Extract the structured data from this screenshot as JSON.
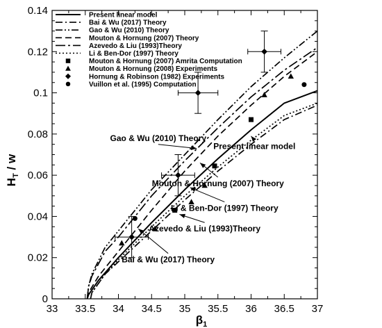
{
  "chart_data": {
    "type": "line",
    "xlabel": "β",
    "xlabel_sub": "1",
    "ylabel": "H",
    "ylabel_sub": "T",
    "ylabel_suffix": " / w",
    "xlim": [
      33,
      37
    ],
    "ylim": [
      0,
      0.14
    ],
    "xticks": [
      33,
      33.5,
      34,
      34.5,
      35,
      35.5,
      36,
      36.5,
      37
    ],
    "xtick_labels": [
      "33",
      "33.5",
      "34",
      "34.5",
      "35",
      "35.5",
      "36",
      "36.5",
      "37"
    ],
    "yticks": [
      0,
      0.02,
      0.04,
      0.06,
      0.08,
      0.1,
      0.12,
      0.14
    ],
    "ytick_labels": [
      "0",
      "0.02",
      "0.04",
      "0.06",
      "0.08",
      "0.1",
      "0.12",
      "0.14"
    ],
    "legend_position": "top-left",
    "series": [
      {
        "name": "Present linear model",
        "kind": "line",
        "dash": "solid",
        "x": [
          33.53,
          33.55,
          33.7,
          34.0,
          34.5,
          35.0,
          35.5,
          36.0,
          36.5,
          37.0
        ],
        "y": [
          0.0,
          0.002,
          0.009,
          0.02,
          0.037,
          0.053,
          0.068,
          0.082,
          0.095,
          0.101
        ]
      },
      {
        "name": "Bai & Wu (2017) Theory",
        "kind": "line",
        "dash": "dashdot",
        "x": [
          33.58,
          33.6,
          33.8,
          34.0,
          34.5,
          35.0,
          35.5,
          36.0,
          36.5,
          37.0
        ],
        "y": [
          0.0,
          0.003,
          0.012,
          0.018,
          0.033,
          0.048,
          0.062,
          0.075,
          0.087,
          0.094
        ]
      },
      {
        "name": "Gao & Wu (2010) Theory",
        "kind": "line",
        "dash": "dashdotdot",
        "x": [
          33.53,
          33.55,
          33.6,
          33.8,
          34.0,
          34.5,
          35.0,
          35.5,
          36.0,
          36.5,
          37.0
        ],
        "y": [
          0.0,
          0.006,
          0.012,
          0.025,
          0.033,
          0.053,
          0.07,
          0.087,
          0.103,
          0.117,
          0.13
        ]
      },
      {
        "name": "Mouton & Hornung (2007) Theory",
        "kind": "line",
        "dash": "dash",
        "x": [
          33.53,
          33.55,
          33.7,
          34.0,
          34.5,
          35.0,
          35.5,
          36.0,
          36.5,
          37.0
        ],
        "y": [
          0.0,
          0.003,
          0.011,
          0.023,
          0.043,
          0.062,
          0.079,
          0.094,
          0.108,
          0.12
        ]
      },
      {
        "name": "Azevedo & Liu (1993)Theory",
        "kind": "line",
        "dash": "longdashdot",
        "x": [
          33.53,
          33.55,
          33.6,
          33.8,
          34.0,
          34.5,
          35.0,
          35.5,
          36.0,
          36.5,
          37.0
        ],
        "y": [
          0.0,
          0.006,
          0.011,
          0.023,
          0.03,
          0.05,
          0.067,
          0.083,
          0.098,
          0.111,
          0.122
        ]
      },
      {
        "name": "Li & Ben-Dor (1997) Theory",
        "kind": "line",
        "dash": "dot",
        "x": [
          33.58,
          33.6,
          33.8,
          34.0,
          34.5,
          35.0,
          35.5,
          36.0,
          36.5,
          37.0
        ],
        "y": [
          0.0,
          0.003,
          0.012,
          0.019,
          0.035,
          0.05,
          0.064,
          0.077,
          0.089,
          0.095
        ]
      },
      {
        "name": "Mouton & Hornung (2007) Amrita Computation",
        "kind": "marker",
        "marker": "square",
        "x": [
          34.85,
          35.45,
          36.0
        ],
        "y": [
          0.043,
          0.0645,
          0.087
        ]
      },
      {
        "name": "Mouton & Hornung (2008) Experiments",
        "kind": "marker",
        "marker": "triangle",
        "x": [
          34.05,
          34.55,
          35.1,
          35.3,
          36.2,
          36.6
        ],
        "y": [
          0.027,
          0.034,
          0.047,
          0.055,
          0.099,
          0.108
        ]
      },
      {
        "name": "Hornung & Robinson (1982) Experiments",
        "kind": "marker",
        "marker": "diamond",
        "x": [
          34.2,
          34.9,
          35.2,
          36.2
        ],
        "y": [
          0.03,
          0.06,
          0.1,
          0.12
        ],
        "xerr": [
          0.25,
          0.25,
          0.3,
          0.25
        ],
        "yerr": [
          0.01,
          0.01,
          0.01,
          0.01
        ]
      },
      {
        "name": "Vuillon et al. (1995) Computation",
        "kind": "marker",
        "marker": "circle",
        "x": [
          34.25,
          36.8
        ],
        "y": [
          0.039,
          0.104
        ]
      }
    ],
    "annotations": [
      {
        "text": "Gao & Wu (2010) Theory",
        "x": 34.6,
        "y": 0.078,
        "pointer_to_x": 35.18,
        "pointer_to_y": 0.073
      },
      {
        "text": "Present linear model",
        "x": 36.05,
        "y": 0.074,
        "pointer_to_x": 36.0,
        "pointer_to_y": 0.079
      },
      {
        "text": "Mouton & Hornung (2007) Theory",
        "x": 35.5,
        "y": 0.056,
        "pointer_to_x": 35.23,
        "pointer_to_y": 0.066
      },
      {
        "text": "Li & Ben-Dor (1997) Theory",
        "x": 35.6,
        "y": 0.044,
        "pointer_to_x": 35.08,
        "pointer_to_y": 0.054
      },
      {
        "text": "Azevedo & Liu (1993)Theory",
        "x": 35.3,
        "y": 0.034,
        "pointer_to_x": 34.92,
        "pointer_to_y": 0.041
      },
      {
        "text": "Bai & Wu (2017) Theory",
        "x": 34.75,
        "y": 0.019,
        "pointer_to_x": 34.3,
        "pointer_to_y": 0.034
      }
    ]
  }
}
